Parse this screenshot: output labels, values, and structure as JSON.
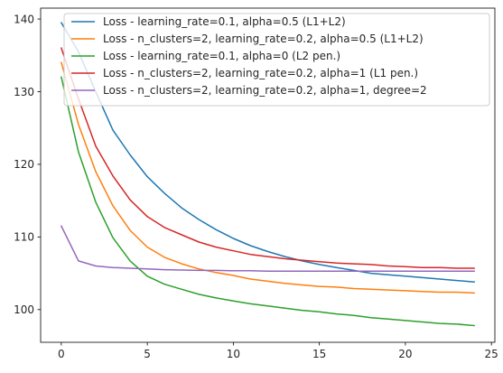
{
  "chart_data": {
    "type": "line",
    "title": "",
    "xlabel": "",
    "ylabel": "",
    "xlim": [
      -1.2,
      25.2
    ],
    "ylim": [
      95.5,
      141.5
    ],
    "xticks": [
      0,
      5,
      10,
      15,
      20,
      25
    ],
    "yticks": [
      100,
      110,
      120,
      130,
      140
    ],
    "grid": false,
    "legend_position": "top-right",
    "series": [
      {
        "name": "Loss - learning_rate=0.1, alpha=0.5 (L1+L2)",
        "color": "#1f77b4",
        "x": [
          0,
          1,
          2,
          3,
          4,
          5,
          6,
          7,
          8,
          9,
          10,
          11,
          12,
          13,
          14,
          15,
          16,
          17,
          18,
          19,
          20,
          21,
          22,
          23,
          24
        ],
        "y": [
          139.5,
          135.5,
          130.0,
          124.7,
          121.3,
          118.3,
          116.0,
          114.0,
          112.4,
          111.0,
          109.8,
          108.8,
          108.0,
          107.3,
          106.7,
          106.2,
          105.8,
          105.4,
          105.0,
          104.8,
          104.6,
          104.4,
          104.2,
          104.0,
          103.8
        ]
      },
      {
        "name": "Loss - n_clusters=2, learning_rate=0.2, alpha=0.5 (L1+L2)",
        "color": "#ff7f0e",
        "x": [
          0,
          1,
          2,
          3,
          4,
          5,
          6,
          7,
          8,
          9,
          10,
          11,
          12,
          13,
          14,
          15,
          16,
          17,
          18,
          19,
          20,
          21,
          22,
          23,
          24
        ],
        "y": [
          134.0,
          125.5,
          119.0,
          114.3,
          110.9,
          108.6,
          107.2,
          106.3,
          105.6,
          105.1,
          104.7,
          104.2,
          103.9,
          103.6,
          103.4,
          103.2,
          103.1,
          102.9,
          102.8,
          102.7,
          102.6,
          102.5,
          102.4,
          102.4,
          102.3
        ]
      },
      {
        "name": "Loss - learning_rate=0.1, alpha=0 (L2 pen.)",
        "color": "#2ca02c",
        "x": [
          0,
          1,
          2,
          3,
          4,
          5,
          6,
          7,
          8,
          9,
          10,
          11,
          12,
          13,
          14,
          15,
          16,
          17,
          18,
          19,
          20,
          21,
          22,
          23,
          24
        ],
        "y": [
          132.0,
          121.7,
          114.8,
          109.9,
          106.7,
          104.6,
          103.5,
          102.8,
          102.1,
          101.6,
          101.2,
          100.8,
          100.5,
          100.2,
          99.9,
          99.7,
          99.4,
          99.2,
          98.9,
          98.7,
          98.5,
          98.3,
          98.1,
          98.0,
          97.8
        ]
      },
      {
        "name": "Loss - n_clusters=2, learning_rate=0.2, alpha=1 (L1 pen.)",
        "color": "#d62728",
        "x": [
          0,
          1,
          2,
          3,
          4,
          5,
          6,
          7,
          8,
          9,
          10,
          11,
          12,
          13,
          14,
          15,
          16,
          17,
          18,
          19,
          20,
          21,
          22,
          23,
          24
        ],
        "y": [
          136.0,
          129.0,
          122.5,
          118.4,
          115.1,
          112.8,
          111.3,
          110.3,
          109.3,
          108.6,
          108.1,
          107.6,
          107.3,
          107.0,
          106.8,
          106.6,
          106.4,
          106.3,
          106.2,
          106.0,
          105.9,
          105.8,
          105.8,
          105.7,
          105.7
        ]
      },
      {
        "name": "Loss - n_clusters=2, learning_rate=0.2, alpha=1, degree=2",
        "color": "#9467bd",
        "x": [
          0,
          1,
          2,
          3,
          4,
          5,
          6,
          7,
          8,
          9,
          10,
          11,
          12,
          13,
          14,
          15,
          16,
          17,
          18,
          19,
          20,
          21,
          22,
          23,
          24
        ],
        "y": [
          111.5,
          106.7,
          106.0,
          105.8,
          105.7,
          105.6,
          105.5,
          105.45,
          105.4,
          105.4,
          105.35,
          105.35,
          105.3,
          105.3,
          105.3,
          105.3,
          105.3,
          105.3,
          105.3,
          105.3,
          105.3,
          105.3,
          105.3,
          105.3,
          105.3
        ]
      }
    ]
  }
}
